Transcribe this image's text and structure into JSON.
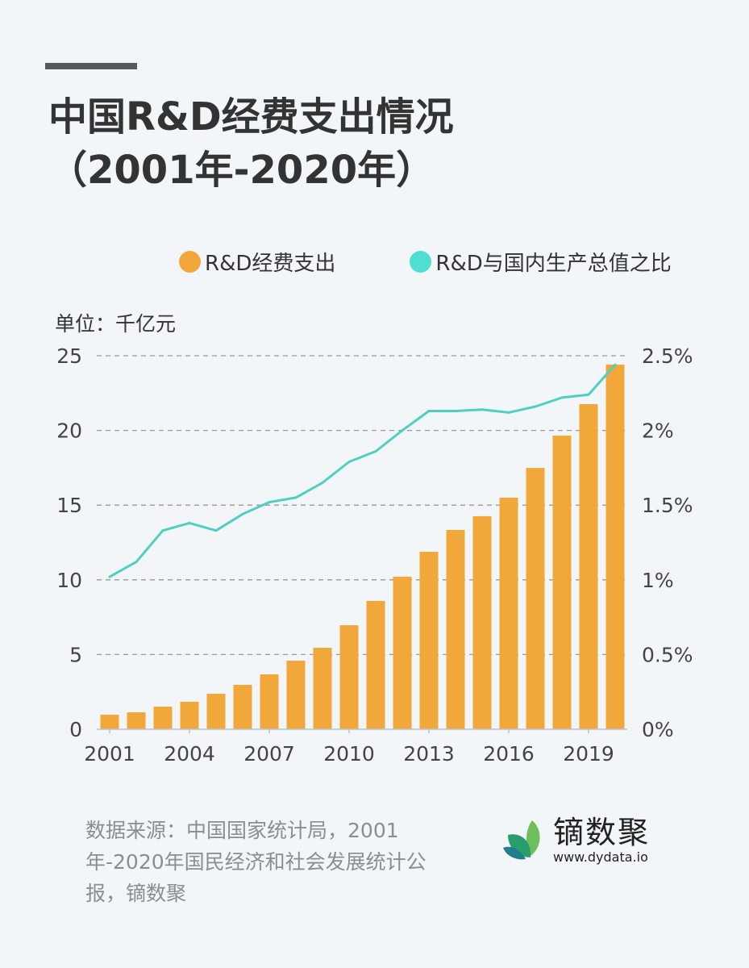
{
  "title": {
    "line1": "中国R&D经费支出情况",
    "line2": "（2001年-2020年）"
  },
  "legend": [
    {
      "label": "R&D经费支出",
      "color": "#f2a73a"
    },
    {
      "label": "R&D与国内生产总值之比",
      "color": "#4fdfd2"
    }
  ],
  "unit_label": "单位：千亿元",
  "source": {
    "text": "数据来源：中国国家统计局，2001年-2020年国民经济和社会发展统计公报，镝数聚"
  },
  "logo": {
    "name": "镝数聚",
    "url": "www.dydata.io",
    "icon": "leaf-logo-icon"
  },
  "chart_data": {
    "type": "bar",
    "title": "中国R&D经费支出情况（2001年-2020年）",
    "xlabel": "",
    "ylabel": "单位：千亿元",
    "y2label": "",
    "categories": [
      "2001",
      "2002",
      "2003",
      "2004",
      "2005",
      "2006",
      "2007",
      "2008",
      "2009",
      "2010",
      "2011",
      "2012",
      "2013",
      "2014",
      "2015",
      "2016",
      "2017",
      "2018",
      "2019",
      "2020"
    ],
    "x_tick_labels": [
      "2001",
      "2004",
      "2007",
      "2010",
      "2013",
      "2016",
      "2019"
    ],
    "y_ticks": [
      "0",
      "5",
      "10",
      "15",
      "20",
      "25"
    ],
    "y2_ticks": [
      "0%",
      "0.5%",
      "1%",
      "1.5%",
      "2%",
      "2.5%"
    ],
    "ylim": [
      0,
      25
    ],
    "y2lim": [
      0,
      2.5
    ],
    "grid": true,
    "legend_position": "top",
    "series": [
      {
        "name": "R&D经费支出",
        "type": "bar",
        "axis": "left",
        "color": "#f2a73a",
        "values": [
          0.97,
          1.13,
          1.51,
          1.84,
          2.38,
          2.97,
          3.67,
          4.59,
          5.45,
          6.96,
          8.59,
          10.21,
          11.88,
          13.34,
          14.26,
          15.5,
          17.49,
          19.65,
          21.76,
          24.41
        ]
      },
      {
        "name": "R&D与国内生产总值之比",
        "type": "line",
        "axis": "right",
        "unit": "%",
        "color": "#4fcfc0",
        "values": [
          1.02,
          1.12,
          1.33,
          1.38,
          1.33,
          1.44,
          1.52,
          1.55,
          1.65,
          1.79,
          1.86,
          2.0,
          2.13,
          2.13,
          2.14,
          2.12,
          2.16,
          2.22,
          2.24,
          2.44
        ]
      }
    ]
  }
}
